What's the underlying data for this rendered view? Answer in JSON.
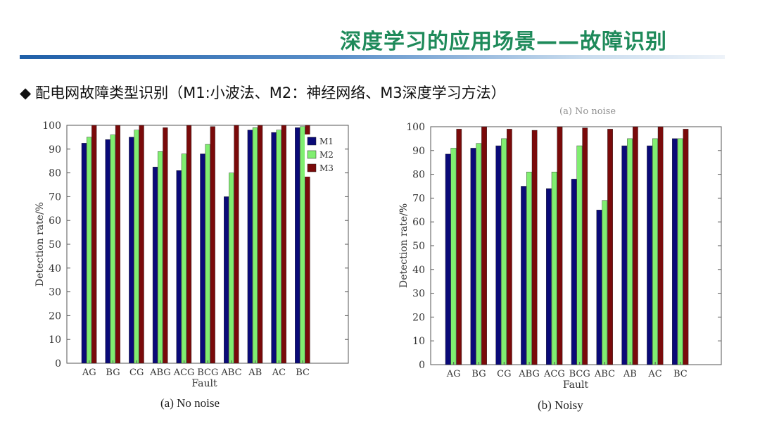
{
  "slide": {
    "title": "深度学习的应用场景——故障识别",
    "title_color": "#1e8a5a",
    "bullet_symbol": "◆",
    "bullet_text": "配电网故障类型识别（M1:小波法、M2：神经网络、M3深度学习方法）",
    "overlap_fragment": "(a) No noise"
  },
  "colors": {
    "M1": "#0a0a78",
    "M2": "#80ee70",
    "M3": "#7a0a0a"
  },
  "chart_data": [
    {
      "type": "bar",
      "title": "",
      "caption": "(a) No noise",
      "xlabel": "Fault",
      "ylabel": "Detection rate/%",
      "ylim": [
        0,
        100
      ],
      "yticks": [
        "0",
        "10",
        "20",
        "30",
        "40",
        "50",
        "60",
        "70",
        "80",
        "90",
        "100"
      ],
      "categories": [
        "AG",
        "BG",
        "CG",
        "ABG",
        "ACG",
        "BCG",
        "ABC",
        "AB",
        "AC",
        "BC"
      ],
      "legend_position": "top-right",
      "series": [
        {
          "name": "M1",
          "values": [
            92.5,
            94,
            95,
            82.5,
            81,
            88,
            70,
            98,
            97,
            99
          ]
        },
        {
          "name": "M2",
          "values": [
            95,
            96,
            98,
            89,
            88,
            92,
            80,
            99,
            98,
            99.5
          ]
        },
        {
          "name": "M3",
          "values": [
            100,
            100,
            100,
            99,
            100,
            99.5,
            100,
            100,
            100,
            100
          ]
        }
      ]
    },
    {
      "type": "bar",
      "title": "",
      "caption": "(b) Noisy",
      "xlabel": "Fault",
      "ylabel": "Detection rate/%",
      "ylim": [
        0,
        100
      ],
      "yticks": [
        "0",
        "10",
        "20",
        "30",
        "40",
        "50",
        "60",
        "70",
        "80",
        "90",
        "100"
      ],
      "categories": [
        "AG",
        "BG",
        "CG",
        "ABG",
        "ACG",
        "BCG",
        "ABC",
        "AB",
        "AC",
        "BC"
      ],
      "legend_position": "none",
      "series": [
        {
          "name": "M1",
          "values": [
            88.5,
            91,
            92,
            75,
            74,
            78,
            65,
            92,
            92,
            95
          ]
        },
        {
          "name": "M2",
          "values": [
            91,
            93,
            95,
            81,
            81,
            92,
            69,
            95,
            95,
            95
          ]
        },
        {
          "name": "M3",
          "values": [
            99,
            100,
            99,
            98.5,
            100,
            99.5,
            99,
            100,
            100,
            99
          ]
        }
      ]
    }
  ]
}
